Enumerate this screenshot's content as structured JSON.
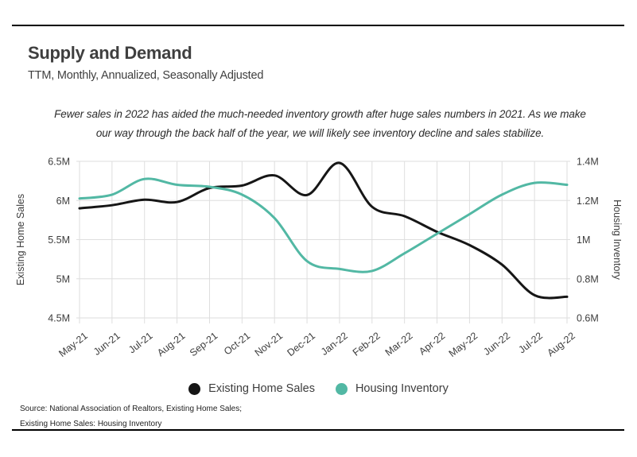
{
  "header": {
    "title": "Supply and Demand",
    "subtitle": "TTM, Monthly, Annualized, Seasonally Adjusted"
  },
  "annotation": {
    "line1": "Fewer sales in 2022 has aided the much-needed inventory growth after huge sales numbers in 2021. As we make",
    "line2": "our way through the back half of the year, we will likely see inventory decline and sales stabilize."
  },
  "chart_data": {
    "type": "line",
    "categories": [
      "May-21",
      "Jun-21",
      "Jul-21",
      "Aug-21",
      "Sep-21",
      "Oct-21",
      "Nov-21",
      "Dec-21",
      "Jan-22",
      "Feb-22",
      "Mar-22",
      "Apr-22",
      "May-22",
      "Jun-22",
      "Jul-22",
      "Aug-22"
    ],
    "series": [
      {
        "name": "Existing Home Sales",
        "axis": "left",
        "color": "#161616",
        "values": [
          5.9,
          5.94,
          6.01,
          5.98,
          6.16,
          6.19,
          6.32,
          6.07,
          6.48,
          5.92,
          5.8,
          5.6,
          5.43,
          5.18,
          4.79,
          4.77
        ]
      },
      {
        "name": "Housing Inventory",
        "axis": "right",
        "color": "#52b8a4",
        "values": [
          1.21,
          1.23,
          1.31,
          1.28,
          1.27,
          1.23,
          1.11,
          0.89,
          0.85,
          0.84,
          0.93,
          1.03,
          1.13,
          1.23,
          1.29,
          1.28
        ]
      }
    ],
    "left_axis": {
      "title": "Existing Home Sales",
      "ticks": [
        "6.5M",
        "6M",
        "5.5M",
        "5M",
        "4.5M"
      ],
      "range": [
        4.5,
        6.5
      ]
    },
    "right_axis": {
      "title": "Housing Inventory",
      "ticks": [
        "1.4M",
        "1.2M",
        "1M",
        "0.8M",
        "0.6M"
      ],
      "range": [
        0.6,
        1.4
      ]
    },
    "grid": true,
    "legend_position": "bottom",
    "line_style": "smooth"
  },
  "footer": {
    "source_line1": "Source:  National Association of Realtors, Existing Home Sales;",
    "source_line2": "Existing Home Sales: Housing Inventory"
  }
}
